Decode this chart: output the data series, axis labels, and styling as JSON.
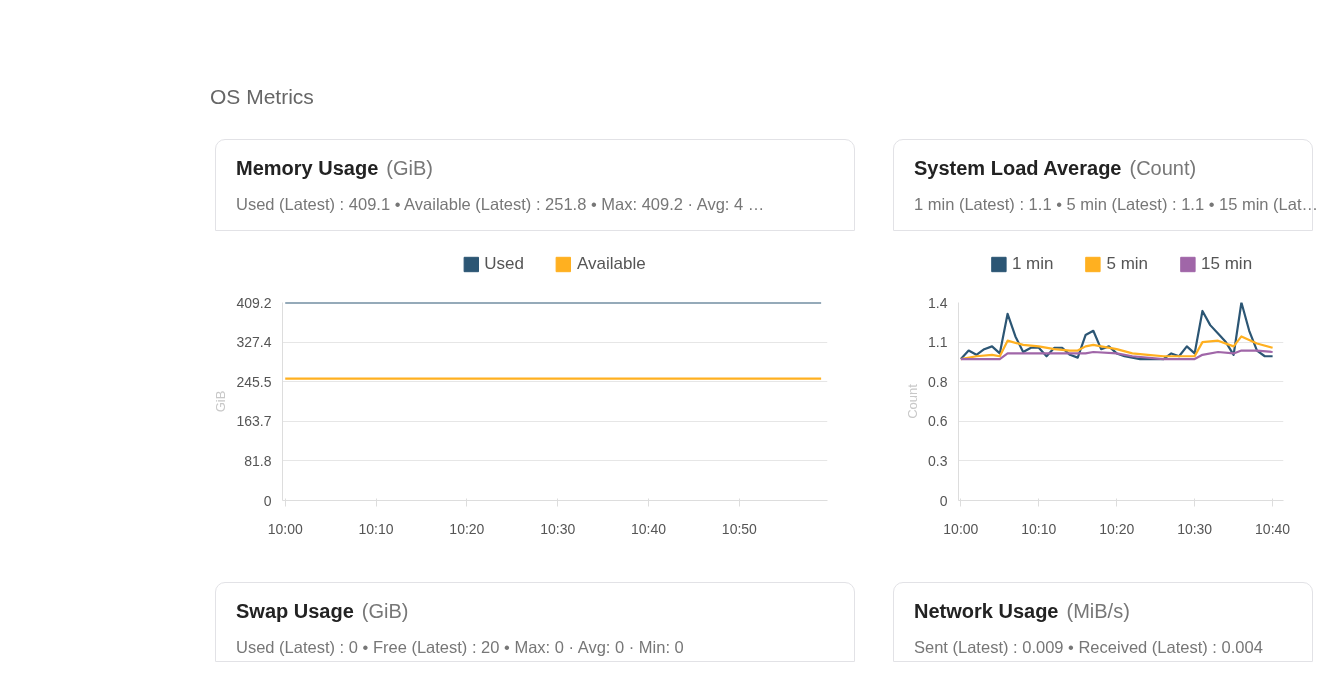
{
  "chart_data": [
    {
      "type": "other",
      "title": "OS Metrics"
    },
    {
      "type": "line",
      "title": "Memory Usage",
      "annotations": [
        "(GiB)"
      ],
      "subtitle": "Used (Latest) : 409.1 • Available (Latest) : 251.8  •  Max: 409.2 · Avg: 4 …",
      "ylabel": "GiB",
      "legend": "top",
      "grid": "y",
      "xlim": [
        9.995,
        10.995
      ],
      "xticks": [
        {
          "value": 10,
          "label": "10:00"
        },
        {
          "value": 10.1667,
          "label": "10:10"
        },
        {
          "value": 10.3333,
          "label": "10:20"
        },
        {
          "value": 10.5,
          "label": "10:30"
        },
        {
          "value": 10.6667,
          "label": "10:40"
        },
        {
          "value": 10.8333,
          "label": "10:50"
        }
      ],
      "ylim": [
        0,
        409.2
      ],
      "yticks": [
        0,
        81.8,
        163.7,
        245.5,
        327.4,
        409.2
      ],
      "series": [
        {
          "name": "Used",
          "color": "#2c5674",
          "x": [
            10,
            10.9833
          ],
          "values": [
            409.2,
            409.2
          ]
        },
        {
          "name": "Available",
          "color": "#ffb020",
          "x": [
            10,
            10.9833
          ],
          "values": [
            251.8,
            251.8
          ]
        }
      ]
    },
    {
      "type": "line",
      "title": "System Load Average",
      "annotations": [
        "(Count)"
      ],
      "subtitle": "1 min (Latest) : 1.1 • 5 min (Latest) : 1.1 • 15 min (Lat…",
      "ylabel": "Count",
      "legend": "top",
      "grid": "y",
      "xlim": [
        9.995,
        10.69
      ],
      "xticks": [
        {
          "value": 10,
          "label": "10:00"
        },
        {
          "value": 10.1667,
          "label": "10:10"
        },
        {
          "value": 10.3333,
          "label": "10:20"
        },
        {
          "value": 10.5,
          "label": "10:30"
        },
        {
          "value": 10.6667,
          "label": "10:40"
        }
      ],
      "ylim": [
        0,
        1.4
      ],
      "yticks": [
        0,
        {
          "value": 0.28,
          "label": "0.3"
        },
        {
          "value": 0.56,
          "label": "0.6"
        },
        {
          "value": 0.84,
          "label": "0.8"
        },
        {
          "value": 1.12,
          "label": "1.1"
        },
        1.4
      ],
      "series": [
        {
          "name": "1 min",
          "color": "#2c5674",
          "x": [
            10,
            10.0167,
            10.0333,
            10.05,
            10.0667,
            10.0833,
            10.1,
            10.1167,
            10.1333,
            10.15,
            10.1667,
            10.1833,
            10.2,
            10.2167,
            10.2333,
            10.25,
            10.2667,
            10.2833,
            10.3,
            10.3167,
            10.3333,
            10.35,
            10.3667,
            10.3833,
            10.4,
            10.4167,
            10.4333,
            10.45,
            10.4667,
            10.4833,
            10.5,
            10.5167,
            10.5333,
            10.55,
            10.5667,
            10.5833,
            10.6,
            10.6167,
            10.6333,
            10.65,
            10.6667
          ],
          "values": [
            1.0,
            1.06,
            1.03,
            1.07,
            1.09,
            1.04,
            1.32,
            1.16,
            1.05,
            1.08,
            1.08,
            1.02,
            1.08,
            1.08,
            1.03,
            1.01,
            1.17,
            1.2,
            1.07,
            1.09,
            1.04,
            1.02,
            1.01,
            1.0,
            1.0,
            1.0,
            1.0,
            1.04,
            1.02,
            1.09,
            1.04,
            1.34,
            1.24,
            1.18,
            1.12,
            1.03,
            1.4,
            1.2,
            1.06,
            1.02,
            1.02
          ]
        },
        {
          "name": "5 min",
          "color": "#ffb020",
          "x": [
            10,
            10.0333,
            10.0667,
            10.0833,
            10.1,
            10.1333,
            10.1667,
            10.2,
            10.2333,
            10.25,
            10.2667,
            10.2833,
            10.3,
            10.3333,
            10.3667,
            10.4,
            10.4333,
            10.4667,
            10.5,
            10.5167,
            10.55,
            10.5833,
            10.6,
            10.6333,
            10.6667
          ],
          "values": [
            1.0,
            1.02,
            1.03,
            1.02,
            1.13,
            1.1,
            1.09,
            1.07,
            1.06,
            1.06,
            1.09,
            1.1,
            1.09,
            1.07,
            1.04,
            1.03,
            1.02,
            1.02,
            1.02,
            1.12,
            1.13,
            1.09,
            1.16,
            1.11,
            1.08
          ]
        },
        {
          "name": "15 min",
          "color": "#a066a8",
          "x": [
            10,
            10.0833,
            10.1,
            10.1333,
            10.2667,
            10.2833,
            10.3333,
            10.3667,
            10.4333,
            10.5,
            10.5167,
            10.55,
            10.5833,
            10.6,
            10.6333,
            10.6667
          ],
          "values": [
            1.0,
            1.0,
            1.04,
            1.04,
            1.04,
            1.05,
            1.04,
            1.02,
            1.0,
            1.0,
            1.03,
            1.05,
            1.04,
            1.06,
            1.06,
            1.05
          ]
        }
      ]
    },
    {
      "type": "other",
      "title": "Swap Usage",
      "annotations": [
        "(GiB)"
      ],
      "subtitle": "Used (Latest) : 0 • Free (Latest) : 20  •  Max: 0 · Avg: 0 · Min: 0"
    },
    {
      "type": "other",
      "title": "Network Usage",
      "annotations": [
        "(MiB/s)"
      ],
      "subtitle": "Sent (Latest) : 0.009 • Received (Latest) : 0.004"
    }
  ]
}
